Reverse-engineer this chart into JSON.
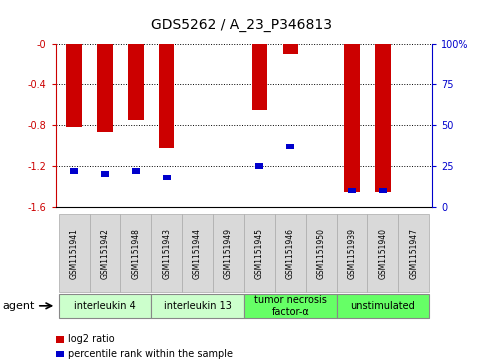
{
  "title": "GDS5262 / A_23_P346813",
  "samples": [
    "GSM1151941",
    "GSM1151942",
    "GSM1151948",
    "GSM1151943",
    "GSM1151944",
    "GSM1151949",
    "GSM1151945",
    "GSM1151946",
    "GSM1151950",
    "GSM1151939",
    "GSM1151940",
    "GSM1151947"
  ],
  "log2_ratios": [
    -0.82,
    -0.87,
    -0.75,
    -1.02,
    0.0,
    0.0,
    -0.65,
    -0.1,
    0.0,
    -1.45,
    -1.45,
    0.0
  ],
  "percentiles": [
    22,
    20,
    22,
    18,
    0,
    0,
    25,
    37,
    0,
    10,
    10,
    0
  ],
  "ylim_left": [
    -1.6,
    0.0
  ],
  "ylim_right": [
    0,
    100
  ],
  "yticks_left": [
    -1.6,
    -1.2,
    -0.8,
    -0.4,
    0.0
  ],
  "yticks_left_labels": [
    "-1.6",
    "-1.2",
    "-0.8",
    "-0.4",
    "-0"
  ],
  "yticks_right": [
    0,
    25,
    50,
    75,
    100
  ],
  "yticks_right_labels": [
    "0",
    "25",
    "50",
    "75",
    "100%"
  ],
  "groups": [
    {
      "label": "interleukin 4",
      "indices": [
        0,
        1,
        2
      ],
      "color": "#ccffcc"
    },
    {
      "label": "interleukin 13",
      "indices": [
        3,
        4,
        5
      ],
      "color": "#ccffcc"
    },
    {
      "label": "tumor necrosis\nfactor-α",
      "indices": [
        6,
        7,
        8
      ],
      "color": "#66ff66"
    },
    {
      "label": "unstimulated",
      "indices": [
        9,
        10,
        11
      ],
      "color": "#66ff66"
    }
  ],
  "bar_color_red": "#cc0000",
  "bar_color_blue": "#0000cc",
  "bar_width": 0.5,
  "blue_bar_width": 0.25,
  "legend_items": [
    {
      "label": "log2 ratio",
      "color": "#cc0000"
    },
    {
      "label": "percentile rank within the sample",
      "color": "#0000cc"
    }
  ],
  "background_color": "#ffffff",
  "tick_color_left": "#cc0000",
  "tick_color_right": "#0000cc",
  "title_fontsize": 10,
  "tick_fontsize": 7,
  "sample_label_fontsize": 5.5,
  "group_label_fontsize": 7,
  "legend_fontsize": 7
}
